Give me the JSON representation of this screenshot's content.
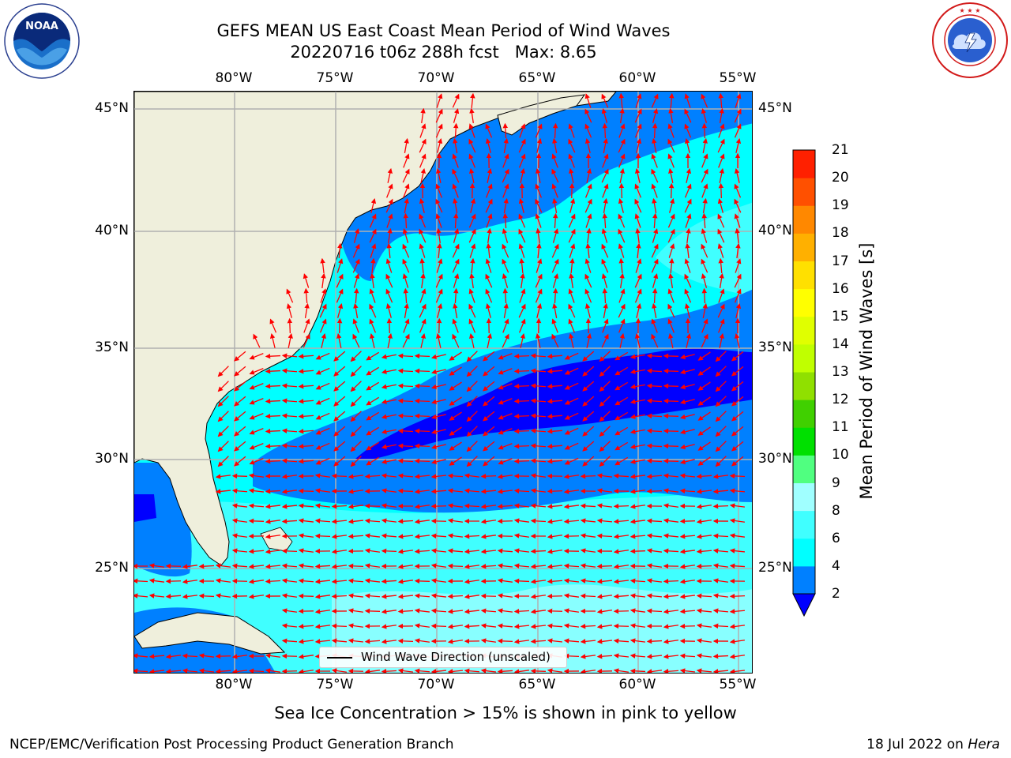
{
  "title": {
    "line1": "GEFS MEAN US East Coast Mean Period of Wind Waves",
    "line2": "20220716 t06z 288h fcst   Max: 8.65"
  },
  "axes": {
    "lon_ticks": [
      "80°W",
      "75°W",
      "70°W",
      "65°W",
      "60°W",
      "55°W"
    ],
    "lat_ticks": [
      "45°N",
      "40°N",
      "35°N",
      "30°N",
      "25°N"
    ]
  },
  "colorbar": {
    "label": "Mean Period of Wind Waves [s]",
    "ticks": [
      "2",
      "4",
      "6",
      "8",
      "9",
      "10",
      "11",
      "12",
      "13",
      "14",
      "15",
      "16",
      "17",
      "18",
      "19",
      "20",
      "21"
    ],
    "colors": [
      "#0080ff",
      "#00ffff",
      "#40ffff",
      "#a0ffff",
      "#50ff80",
      "#00e000",
      "#40d000",
      "#90e000",
      "#c0ff00",
      "#e0ff00",
      "#ffff00",
      "#ffe000",
      "#ffb000",
      "#ff8800",
      "#ff5000",
      "#ff2000"
    ],
    "under_color": "#0000ff"
  },
  "legend": {
    "label": "Wind Wave Direction (unscaled)"
  },
  "footnote": "Sea Ice Concentration > 15% is shown in pink to yellow",
  "footer": {
    "left": "NCEP/EMC/Verification Post Processing Product Generation Branch",
    "date": "18 Jul 2022 on ",
    "machine": "Hera"
  },
  "logos": {
    "left": "NOAA",
    "right": "NATIONAL WEATHER SERVICE"
  },
  "map_colors": {
    "land": "#efefdc",
    "arrow": "#ff0000",
    "grid": "#b0b0b0"
  }
}
